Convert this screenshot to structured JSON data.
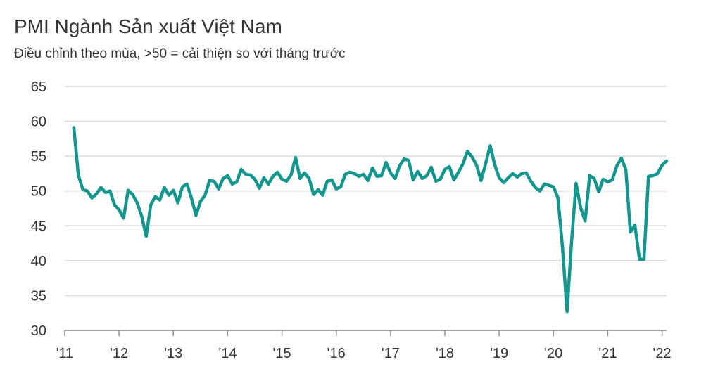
{
  "title": "PMI Ngành Sản xuất Việt Nam",
  "subtitle": "Điều chỉnh theo mùa, >50 = cải thiện so với tháng trước",
  "colors": {
    "line": "#12968d",
    "grid": "#d9d9d9",
    "axis": "#8c8c8c",
    "text": "#333333"
  },
  "chart_data": {
    "type": "line",
    "title": "PMI Ngành Sản xuất Việt Nam",
    "subtitle": "Điều chỉnh theo mùa, >50 = cải thiện so với tháng trước",
    "xlabel": "",
    "ylabel": "",
    "ylim": [
      30,
      65
    ],
    "yticks": [
      30,
      35,
      40,
      45,
      50,
      55,
      60,
      65
    ],
    "xlim": [
      "2011-01",
      "2022-02"
    ],
    "xtick_labels": [
      "'11",
      "'12",
      "'13",
      "'14",
      "'15",
      "'16",
      "'17",
      "'18",
      "'19",
      "'20",
      "'21",
      "'22"
    ],
    "grid": "horizontal",
    "legend": "none",
    "series": [
      {
        "name": "",
        "x": [
          "2011-03",
          "2011-04",
          "2011-05",
          "2011-06",
          "2011-07",
          "2011-08",
          "2011-09",
          "2011-10",
          "2011-11",
          "2011-12",
          "2012-01",
          "2012-02",
          "2012-03",
          "2012-04",
          "2012-05",
          "2012-06",
          "2012-07",
          "2012-08",
          "2012-09",
          "2012-10",
          "2012-11",
          "2012-12",
          "2013-01",
          "2013-02",
          "2013-03",
          "2013-04",
          "2013-05",
          "2013-06",
          "2013-07",
          "2013-08",
          "2013-09",
          "2013-10",
          "2013-11",
          "2013-12",
          "2014-01",
          "2014-02",
          "2014-03",
          "2014-04",
          "2014-05",
          "2014-06",
          "2014-07",
          "2014-08",
          "2014-09",
          "2014-10",
          "2014-11",
          "2014-12",
          "2015-01",
          "2015-02",
          "2015-03",
          "2015-04",
          "2015-05",
          "2015-06",
          "2015-07",
          "2015-08",
          "2015-09",
          "2015-10",
          "2015-11",
          "2015-12",
          "2016-01",
          "2016-02",
          "2016-03",
          "2016-04",
          "2016-05",
          "2016-06",
          "2016-07",
          "2016-08",
          "2016-09",
          "2016-10",
          "2016-11",
          "2016-12",
          "2017-01",
          "2017-02",
          "2017-03",
          "2017-04",
          "2017-05",
          "2017-06",
          "2017-07",
          "2017-08",
          "2017-09",
          "2017-10",
          "2017-11",
          "2017-12",
          "2018-01",
          "2018-02",
          "2018-03",
          "2018-04",
          "2018-05",
          "2018-06",
          "2018-07",
          "2018-08",
          "2018-09",
          "2018-10",
          "2018-11",
          "2018-12",
          "2019-01",
          "2019-02",
          "2019-03",
          "2019-04",
          "2019-05",
          "2019-06",
          "2019-07",
          "2019-08",
          "2019-09",
          "2019-10",
          "2019-11",
          "2019-12",
          "2020-01",
          "2020-02",
          "2020-03",
          "2020-04",
          "2020-05",
          "2020-06",
          "2020-07",
          "2020-08",
          "2020-09",
          "2020-10",
          "2020-11",
          "2020-12",
          "2021-01",
          "2021-02",
          "2021-03",
          "2021-04",
          "2021-05",
          "2021-06",
          "2021-07",
          "2021-08",
          "2021-09",
          "2021-10",
          "2021-11",
          "2021-12",
          "2022-01",
          "2022-02"
        ],
        "values": [
          59.1,
          52.3,
          50.2,
          50.0,
          49.0,
          49.6,
          50.5,
          49.8,
          50.0,
          48.0,
          47.3,
          46.1,
          50.1,
          49.5,
          48.3,
          46.4,
          43.5,
          48.0,
          49.2,
          48.7,
          50.5,
          49.4,
          50.1,
          48.3,
          50.6,
          51.0,
          49.0,
          46.5,
          48.5,
          49.4,
          51.5,
          51.4,
          50.3,
          51.8,
          52.2,
          51.0,
          51.3,
          53.1,
          52.4,
          52.3,
          51.7,
          50.4,
          51.9,
          51.0,
          52.1,
          52.7,
          51.7,
          51.4,
          52.3,
          54.8,
          51.8,
          52.6,
          51.8,
          49.5,
          50.2,
          49.4,
          51.4,
          51.6,
          50.3,
          50.6,
          52.4,
          52.7,
          52.5,
          52.1,
          52.4,
          51.5,
          53.3,
          52.1,
          52.2,
          54.1,
          52.6,
          51.8,
          53.6,
          54.6,
          54.4,
          51.6,
          52.8,
          51.8,
          52.2,
          53.4,
          51.4,
          51.7,
          53.1,
          53.5,
          51.6,
          52.7,
          53.9,
          55.7,
          54.9,
          53.7,
          51.5,
          53.9,
          56.5,
          53.8,
          51.9,
          51.2,
          51.9,
          52.5,
          52.0,
          52.5,
          52.6,
          51.4,
          50.5,
          50.0,
          51.0,
          50.8,
          50.6,
          49.0,
          41.9,
          32.7,
          42.7,
          51.1,
          47.6,
          45.7,
          52.2,
          51.8,
          49.9,
          51.7,
          51.3,
          51.6,
          53.6,
          54.7,
          53.1,
          44.1,
          45.1,
          40.2,
          40.2,
          52.1,
          52.2,
          52.5,
          53.7,
          54.3
        ]
      }
    ]
  }
}
